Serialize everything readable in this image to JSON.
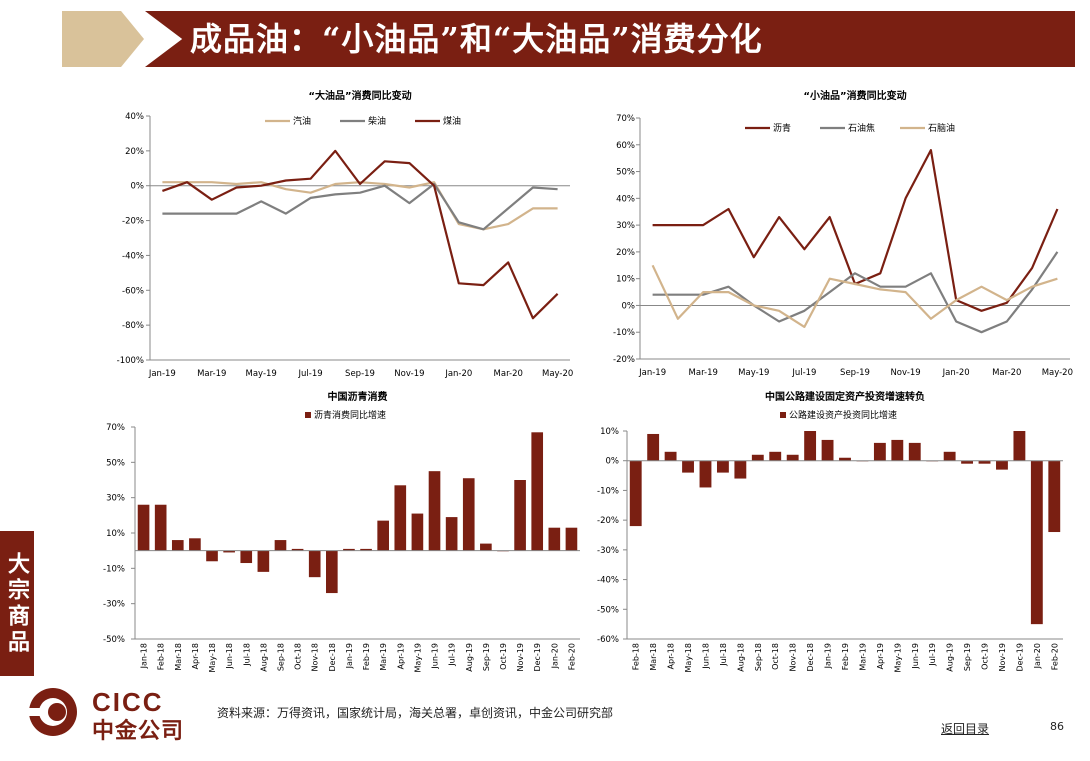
{
  "header": {
    "title": "成品油：“小油品”和“大油品”消费分化"
  },
  "side_tab": {
    "label": "大宗商品"
  },
  "footer": {
    "source": "资料来源：万得资讯，国家统计局，海关总署，卓创资讯，中金公司研究部",
    "back_link": "返回目录",
    "page_number": "86",
    "logo_en": "CICC",
    "logo_cn": "中金公司"
  },
  "colors": {
    "dark_red": "#7a1f12",
    "tan": "#d2b48c",
    "gray": "#7f7f7f",
    "bar": "#7a1f12"
  },
  "chart_data": [
    {
      "id": "big_oil",
      "type": "line",
      "title": "“大油品”消费同比变动",
      "categories": [
        "Jan-19",
        "Feb-19",
        "Mar-19",
        "Apr-19",
        "May-19",
        "Jun-19",
        "Jul-19",
        "Aug-19",
        "Sep-19",
        "Oct-19",
        "Nov-19",
        "Dec-19",
        "Jan-20",
        "Feb-20",
        "Mar-20",
        "Apr-20",
        "May-20"
      ],
      "tick_labels": [
        "Jan-19",
        "Mar-19",
        "May-19",
        "Jul-19",
        "Sep-19",
        "Nov-19",
        "Jan-20",
        "Mar-20",
        "May-20"
      ],
      "ylim": [
        -100,
        40
      ],
      "yticks": [
        40,
        20,
        0,
        -20,
        -40,
        -60,
        -80,
        -100
      ],
      "ytick_labels": [
        "40%",
        "20%",
        "0%",
        "-20%",
        "-40%",
        "-60%",
        "-80%",
        "-100%"
      ],
      "legend_placement": "top",
      "series": [
        {
          "name": "汽油",
          "color": "#d2b48c",
          "values": [
            2,
            2,
            2,
            1,
            2,
            -2,
            -4,
            1,
            2,
            1,
            -1,
            2,
            -22,
            -25,
            -22,
            -13,
            -13
          ]
        },
        {
          "name": "柴油",
          "color": "#7f7f7f",
          "values": [
            -16,
            -16,
            -16,
            -16,
            -9,
            -16,
            -7,
            -5,
            -4,
            0,
            -10,
            1,
            -21,
            -25,
            -13,
            -1,
            -2
          ]
        },
        {
          "name": "煤油",
          "color": "#7a1f12",
          "values": [
            -3,
            2,
            -8,
            -1,
            0,
            3,
            4,
            20,
            1,
            14,
            13,
            0,
            -56,
            -57,
            -44,
            -76,
            -62
          ]
        }
      ]
    },
    {
      "id": "small_oil",
      "type": "line",
      "title": "“小油品”消费同比变动",
      "categories": [
        "Jan-19",
        "Feb-19",
        "Mar-19",
        "Apr-19",
        "May-19",
        "Jun-19",
        "Jul-19",
        "Aug-19",
        "Sep-19",
        "Oct-19",
        "Nov-19",
        "Dec-19",
        "Jan-20",
        "Feb-20",
        "Mar-20",
        "Apr-20",
        "May-20"
      ],
      "tick_labels": [
        "Jan-19",
        "Mar-19",
        "May-19",
        "Jul-19",
        "Sep-19",
        "Nov-19",
        "Jan-20",
        "Mar-20",
        "May-20"
      ],
      "ylim": [
        -20,
        70
      ],
      "yticks": [
        70,
        60,
        50,
        40,
        30,
        20,
        10,
        0,
        -10,
        -20
      ],
      "ytick_labels": [
        "70%",
        "60%",
        "50%",
        "40%",
        "30%",
        "20%",
        "10%",
        "0%",
        "-10%",
        "-20%"
      ],
      "legend_placement": "top",
      "series": [
        {
          "name": "沥青",
          "color": "#7a1f12",
          "values": [
            30,
            30,
            30,
            36,
            18,
            33,
            21,
            33,
            8,
            12,
            40,
            58,
            2,
            -2,
            1,
            14,
            36
          ]
        },
        {
          "name": "石油焦",
          "color": "#7f7f7f",
          "values": [
            4,
            4,
            4,
            7,
            0,
            -6,
            -2,
            5,
            12,
            7,
            7,
            12,
            -6,
            -10,
            -6,
            6,
            20
          ]
        },
        {
          "name": "石脑油",
          "color": "#d2b48c",
          "values": [
            15,
            -5,
            5,
            5,
            0,
            -2,
            -8,
            10,
            8,
            6,
            5,
            -5,
            2,
            7,
            2,
            7,
            10
          ]
        }
      ]
    },
    {
      "id": "asphalt_consumption",
      "type": "bar",
      "title": "中国沥青消费",
      "series_name": "沥青消费同比增速",
      "categories": [
        "Jan-18",
        "Feb-18",
        "Mar-18",
        "Apr-18",
        "May-18",
        "Jun-18",
        "Jul-18",
        "Aug-18",
        "Sep-18",
        "Oct-18",
        "Nov-18",
        "Dec-18",
        "Jan-19",
        "Feb-19",
        "Mar-19",
        "Apr-19",
        "May-19",
        "Jun-19",
        "Jul-19",
        "Aug-19",
        "Sep-19",
        "Oct-19",
        "Nov-19",
        "Dec-19",
        "Jan-20",
        "Feb-20"
      ],
      "values": [
        26,
        26,
        6,
        7,
        -6,
        -1,
        -7,
        -12,
        6,
        1,
        -15,
        -24,
        1,
        1,
        17,
        37,
        21,
        45,
        19,
        41,
        4,
        0,
        40,
        67,
        13,
        13
      ],
      "ylim": [
        -50,
        70
      ],
      "yticks": [
        70,
        50,
        30,
        10,
        -10,
        -30,
        -50
      ],
      "ytick_labels": [
        "70%",
        "50%",
        "30%",
        "10%",
        "-10%",
        "-30%",
        "-50%"
      ],
      "legend_placement": "top"
    },
    {
      "id": "road_investment",
      "type": "bar",
      "title": "中国公路建设固定资产投资增速转负",
      "series_name": "公路建设资产投资同比增速",
      "categories": [
        "Feb-18",
        "Mar-18",
        "Apr-18",
        "May-18",
        "Jun-18",
        "Jul-18",
        "Aug-18",
        "Sep-18",
        "Oct-18",
        "Nov-18",
        "Dec-18",
        "Jan-19",
        "Feb-19",
        "Mar-19",
        "Apr-19",
        "May-19",
        "Jun-19",
        "Jul-19",
        "Aug-19",
        "Sep-19",
        "Oct-19",
        "Nov-19",
        "Dec-19",
        "Jan-20",
        "Feb-20"
      ],
      "values": [
        -22,
        9,
        3,
        -4,
        -9,
        -4,
        -6,
        2,
        3,
        2,
        10,
        7,
        1,
        0,
        6,
        7,
        6,
        0,
        3,
        -1,
        -1,
        -3,
        10,
        -55,
        -24
      ],
      "ylim": [
        -60,
        10
      ],
      "yticks": [
        10,
        0,
        -10,
        -20,
        -30,
        -40,
        -50,
        -60
      ],
      "ytick_labels": [
        "10%",
        "0%",
        "-10%",
        "-20%",
        "-30%",
        "-40%",
        "-50%",
        "-60%"
      ],
      "legend_placement": "top"
    }
  ]
}
